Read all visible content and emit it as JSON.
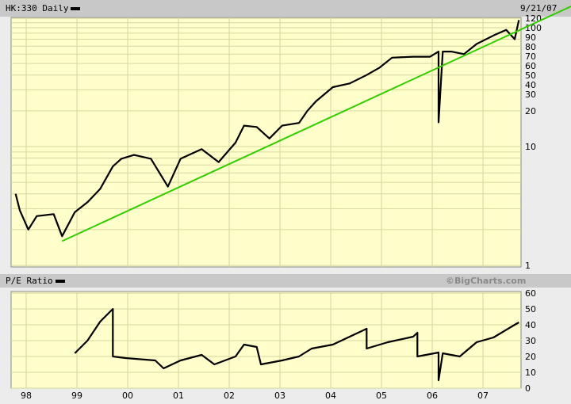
{
  "header": {
    "symbol_label": "HK:330 Daily",
    "date": "9/21/07"
  },
  "lower_header": {
    "label": "P/E Ratio",
    "watermark": "©BigCharts.com"
  },
  "colors": {
    "background": "#ececec",
    "header": "#c8c8c8",
    "plot": "#ffffcc",
    "grid": "#d6d69c",
    "price": "#000000",
    "trendline": "#33cc00"
  },
  "chart_data": [
    {
      "type": "line",
      "title": "HK:330 Daily",
      "yscale": "log",
      "ylim": [
        1,
        130
      ],
      "grid": true,
      "y_tick_labels": [
        "120",
        "100",
        "90",
        "80",
        "70",
        "60",
        "50",
        "40",
        "30",
        "20",
        "10",
        "1"
      ],
      "x_tick_labels": [
        "98",
        "99",
        "00",
        "01",
        "02",
        "03",
        "04",
        "05",
        "06",
        "07"
      ],
      "series": [
        {
          "values": [
            [
              "1997-10",
              4.0
            ],
            [
              "1997-11",
              2.9
            ],
            [
              "1998-01",
              2.0
            ],
            [
              "1998-03",
              2.6
            ],
            [
              "1998-07",
              2.7
            ],
            [
              "1998-09",
              1.76
            ],
            [
              "1998-12",
              2.8
            ],
            [
              "1999-03",
              3.4
            ],
            [
              "1999-06",
              4.4
            ],
            [
              "1999-09",
              6.8
            ],
            [
              "1999-11",
              7.9
            ],
            [
              "2000-02",
              8.5
            ],
            [
              "2000-06",
              7.9
            ],
            [
              "2000-10",
              4.6
            ],
            [
              "2001-01",
              7.9
            ],
            [
              "2001-06",
              9.5
            ],
            [
              "2001-10",
              7.4
            ],
            [
              "2002-02",
              10.8
            ],
            [
              "2002-04",
              15
            ],
            [
              "2002-07",
              14.6
            ],
            [
              "2002-10",
              11.7
            ],
            [
              "2003-01",
              15
            ],
            [
              "2003-05",
              15.8
            ],
            [
              "2003-07",
              20
            ],
            [
              "2003-09",
              24
            ],
            [
              "2004-01",
              31.6
            ],
            [
              "2004-05",
              34
            ],
            [
              "2004-09",
              40
            ],
            [
              "2004-12",
              46
            ],
            [
              "2005-03",
              56
            ],
            [
              "2005-08",
              57
            ],
            [
              "2005-12",
              57
            ],
            [
              "2006-02",
              63
            ],
            [
              "2006-02",
              16
            ],
            [
              "2006-03",
              63
            ],
            [
              "2006-05",
              63
            ],
            [
              "2006-08",
              60
            ],
            [
              "2006-11",
              73
            ],
            [
              "2007-03",
              86
            ],
            [
              "2007-06",
              96
            ],
            [
              "2007-08",
              80
            ],
            [
              "2007-09",
              116
            ]
          ]
        }
      ],
      "trendline": {
        "start": [
          "1998-09",
          1.6
        ],
        "end": [
          "2007-09",
          95
        ]
      }
    },
    {
      "type": "line",
      "title": "P/E Ratio",
      "ylim": [
        0,
        60
      ],
      "grid": true,
      "y_tick_labels": [
        "60",
        "50",
        "40",
        "30",
        "20",
        "10",
        "0"
      ],
      "x_tick_labels": [
        "98",
        "99",
        "00",
        "01",
        "02",
        "03",
        "04",
        "05",
        "06",
        "07"
      ],
      "series": [
        {
          "values": [
            [
              "1998-12",
              22
            ],
            [
              "1999-03",
              30
            ],
            [
              "1999-06",
              42
            ],
            [
              "1999-09",
              50
            ],
            [
              "1999-09",
              20
            ],
            [
              "1999-12",
              19
            ],
            [
              "2000-07",
              17.5
            ],
            [
              "2000-09",
              12.5
            ],
            [
              "2001-01",
              17.5
            ],
            [
              "2001-06",
              21
            ],
            [
              "2001-09",
              15
            ],
            [
              "2002-02",
              20
            ],
            [
              "2002-04",
              27.5
            ],
            [
              "2002-07",
              26
            ],
            [
              "2002-08",
              15
            ],
            [
              "2003-01",
              17.5
            ],
            [
              "2003-05",
              20
            ],
            [
              "2003-08",
              25
            ],
            [
              "2004-01",
              27.5
            ],
            [
              "2004-05",
              32.5
            ],
            [
              "2004-09",
              37.5
            ],
            [
              "2004-09",
              25
            ],
            [
              "2005-02",
              29
            ],
            [
              "2005-08",
              32.5
            ],
            [
              "2005-09",
              35
            ],
            [
              "2005-09",
              20
            ],
            [
              "2006-02",
              22.5
            ],
            [
              "2006-02",
              5
            ],
            [
              "2006-03",
              22
            ],
            [
              "2006-07",
              20
            ],
            [
              "2006-11",
              29
            ],
            [
              "2007-03",
              32
            ],
            [
              "2007-08",
              40
            ],
            [
              "2007-09",
              41.5
            ]
          ]
        }
      ]
    }
  ]
}
